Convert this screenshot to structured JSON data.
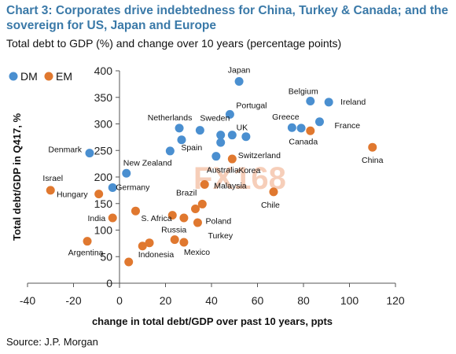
{
  "header": {
    "title": "Chart 3: Corporates drive indebtedness for China, Turkey & Canada; and the sovereign for US, Japan and Europe",
    "subtitle": "Total debt to GDP (%) and change over 10 years (percentage points)",
    "source": "Source: J.P. Morgan",
    "watermark": "FX168"
  },
  "chart_data": {
    "type": "scatter",
    "title": "Chart 3: Corporates drive indebtedness for China, Turkey & Canada; and the sovereign for US, Japan and Europe",
    "subtitle": "Total debt to GDP (%) and change over 10 years (percentage points)",
    "xlabel": "change in total debt/GDP over past 10 years, ppts",
    "ylabel": "Total debt/GDP in Q417, %",
    "xlim": [
      -40,
      120
    ],
    "ylim": [
      0,
      400
    ],
    "xticks": [
      -40,
      -20,
      0,
      20,
      40,
      60,
      80,
      100,
      120
    ],
    "yticks": [
      0,
      50,
      100,
      150,
      200,
      250,
      300,
      350,
      400
    ],
    "grid": false,
    "legend_position": "top-left",
    "colors": {
      "DM": "#4a8fd0",
      "EM": "#e0782f"
    },
    "series": [
      {
        "name": "DM",
        "points": [
          {
            "x": 52,
            "y": 380,
            "label": "Japan"
          },
          {
            "x": 83,
            "y": 343,
            "label": "Belgium"
          },
          {
            "x": 91,
            "y": 341,
            "label": "Ireland"
          },
          {
            "x": 48,
            "y": 318,
            "label": "Portugal"
          },
          {
            "x": 26,
            "y": 292,
            "label": "Netherlands"
          },
          {
            "x": 75,
            "y": 293,
            "label": "Greece"
          },
          {
            "x": 79,
            "y": 292,
            "label": ""
          },
          {
            "x": 87,
            "y": 304,
            "label": "France"
          },
          {
            "x": 35,
            "y": 288,
            "label": "Sweden"
          },
          {
            "x": 44,
            "y": 279,
            "label": ""
          },
          {
            "x": 49,
            "y": 279,
            "label": ""
          },
          {
            "x": 55,
            "y": 276,
            "label": "UK"
          },
          {
            "x": 27,
            "y": 270,
            "label": ""
          },
          {
            "x": 44,
            "y": 265,
            "label": "Switzerland"
          },
          {
            "x": 22,
            "y": 249,
            "label": "Spain"
          },
          {
            "x": 42,
            "y": 239,
            "label": "Australia"
          },
          {
            "x": -13,
            "y": 245,
            "label": "Denmark"
          },
          {
            "x": 3,
            "y": 207,
            "label": "New Zealand"
          },
          {
            "x": -3,
            "y": 180,
            "label": "Germany"
          }
        ]
      },
      {
        "name": "EM",
        "points": [
          {
            "x": 110,
            "y": 256,
            "label": "China"
          },
          {
            "x": 83,
            "y": 287,
            "label": "Canada"
          },
          {
            "x": 49,
            "y": 234,
            "label": "Korea"
          },
          {
            "x": 67,
            "y": 172,
            "label": "Chile"
          },
          {
            "x": 37,
            "y": 186,
            "label": "Malaysia"
          },
          {
            "x": -30,
            "y": 175,
            "label": "Israel"
          },
          {
            "x": -9,
            "y": 168,
            "label": "Hungary"
          },
          {
            "x": 36,
            "y": 149,
            "label": "Brazil"
          },
          {
            "x": 33,
            "y": 140,
            "label": "Poland"
          },
          {
            "x": 7,
            "y": 136,
            "label": "S. Africa"
          },
          {
            "x": 23,
            "y": 128,
            "label": ""
          },
          {
            "x": 28,
            "y": 123,
            "label": ""
          },
          {
            "x": 34,
            "y": 114,
            "label": "Turkey"
          },
          {
            "x": -3,
            "y": 123,
            "label": "India"
          },
          {
            "x": 24,
            "y": 82,
            "label": "Russia"
          },
          {
            "x": 28,
            "y": 77,
            "label": "Mexico"
          },
          {
            "x": 13,
            "y": 76,
            "label": ""
          },
          {
            "x": 10,
            "y": 70,
            "label": ""
          },
          {
            "x": -14,
            "y": 79,
            "label": "Argentina"
          },
          {
            "x": 4,
            "y": 40,
            "label": "Indonesia"
          }
        ]
      }
    ]
  }
}
